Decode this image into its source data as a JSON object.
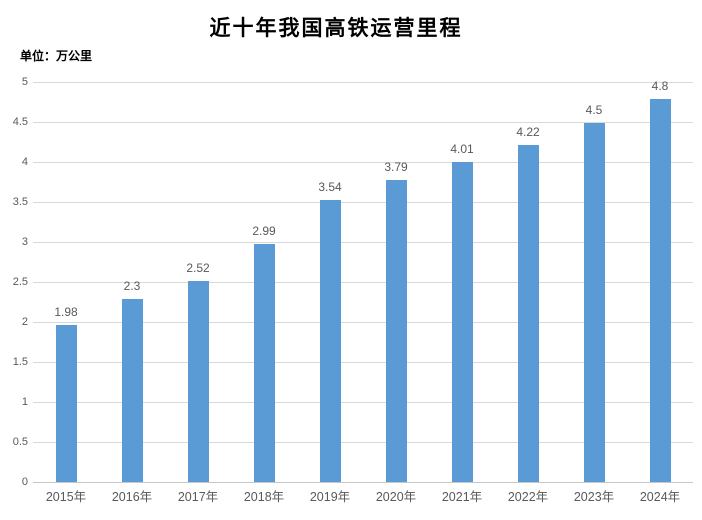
{
  "chart_data": {
    "type": "bar",
    "title": "近十年我国高铁运营里程",
    "unit_label": "单位：万公里",
    "categories": [
      "2015年",
      "2016年",
      "2017年",
      "2018年",
      "2019年",
      "2020年",
      "2021年",
      "2022年",
      "2023年",
      "2024年"
    ],
    "values": [
      1.98,
      2.3,
      2.52,
      2.99,
      3.54,
      3.79,
      4.01,
      4.22,
      4.5,
      4.8
    ],
    "data_labels": [
      "1.98",
      "2.3",
      "2.52",
      "2.99",
      "3.54",
      "3.79",
      "4.01",
      "4.22",
      "4.5",
      "4.8"
    ],
    "y_tick_labels": [
      "0",
      "0.5",
      "1",
      "1.5",
      "2",
      "2.5",
      "3",
      "3.5",
      "4",
      "4.5",
      "5"
    ],
    "xlabel": "",
    "ylabel": "",
    "ylim": [
      0,
      5
    ],
    "ytick_step": 0.5,
    "grid": true,
    "legend_position": "none",
    "colors": {
      "bar_fill": "#5B9BD5",
      "gridline": "#D9D9D9",
      "axis_line": "#C6C6C6",
      "tick_text": "#595959",
      "value_label_text": "#595959",
      "title_text": "#000000",
      "background": "#FFFFFF"
    }
  }
}
